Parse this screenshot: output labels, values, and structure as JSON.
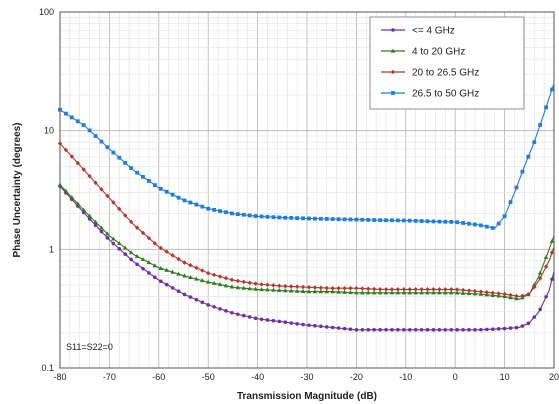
{
  "chart_data": {
    "type": "line",
    "title": "",
    "xlabel": "Transmission Magnitude  (dB)",
    "ylabel": "Phase Uncertainty  (degrees)",
    "xlim": [
      -80,
      20
    ],
    "ylim": [
      0.1,
      100
    ],
    "yscale": "log",
    "grid": true,
    "legend_position": "top-right",
    "x_ticks": [
      "-80",
      "-70",
      "-60",
      "-50",
      "-40",
      "-30",
      "-20",
      "-10",
      "0",
      "10",
      "20"
    ],
    "y_ticks": [
      "0.1",
      "1",
      "10",
      "100"
    ],
    "annotation": "S11=S22=0",
    "series": [
      {
        "name": "<= 4 GHz",
        "color": "#7030a0",
        "marker": "circle",
        "x": [
          -80,
          -75,
          -70,
          -65,
          -60,
          -55,
          -50,
          -45,
          -40,
          -35,
          -30,
          -25,
          -20,
          -15,
          -10,
          -5,
          0,
          5,
          10,
          13,
          15,
          17,
          19,
          20
        ],
        "y": [
          3.4,
          2.0,
          1.2,
          0.78,
          0.55,
          0.42,
          0.34,
          0.29,
          0.26,
          0.245,
          0.23,
          0.22,
          0.21,
          0.21,
          0.21,
          0.21,
          0.21,
          0.21,
          0.215,
          0.22,
          0.24,
          0.3,
          0.45,
          0.65
        ]
      },
      {
        "name": "4 to 20 GHz",
        "color": "#2e7d1e",
        "marker": "triangle",
        "x": [
          -80,
          -75,
          -70,
          -65,
          -60,
          -55,
          -50,
          -45,
          -40,
          -35,
          -30,
          -25,
          -20,
          -15,
          -10,
          -5,
          0,
          5,
          10,
          13,
          15,
          17,
          19,
          20
        ],
        "y": [
          3.5,
          2.1,
          1.3,
          0.9,
          0.7,
          0.6,
          0.53,
          0.48,
          0.46,
          0.45,
          0.44,
          0.44,
          0.43,
          0.43,
          0.43,
          0.43,
          0.43,
          0.42,
          0.4,
          0.38,
          0.42,
          0.6,
          1.0,
          1.3
        ]
      },
      {
        "name": "20 to 26.5 GHz",
        "color": "#b03a2e",
        "marker": "diamond",
        "x": [
          -80,
          -75,
          -70,
          -65,
          -60,
          -55,
          -50,
          -45,
          -40,
          -35,
          -30,
          -25,
          -20,
          -15,
          -10,
          -5,
          0,
          5,
          10,
          13,
          15,
          17,
          19,
          20
        ],
        "y": [
          7.8,
          4.6,
          2.7,
          1.6,
          1.05,
          0.78,
          0.63,
          0.55,
          0.51,
          0.49,
          0.48,
          0.47,
          0.47,
          0.46,
          0.46,
          0.46,
          0.46,
          0.44,
          0.42,
          0.4,
          0.42,
          0.55,
          0.8,
          1.05
        ]
      },
      {
        "name": "26.5 to 50 GHz",
        "color": "#1f7fd6",
        "marker": "square",
        "x": [
          -80,
          -75,
          -70,
          -65,
          -60,
          -55,
          -50,
          -45,
          -40,
          -35,
          -30,
          -25,
          -20,
          -15,
          -10,
          -5,
          0,
          5,
          8,
          10,
          12,
          14,
          16,
          18,
          20
        ],
        "y": [
          15,
          11,
          7,
          4.6,
          3.3,
          2.6,
          2.2,
          2.0,
          1.9,
          1.85,
          1.82,
          1.8,
          1.78,
          1.76,
          1.75,
          1.72,
          1.7,
          1.6,
          1.5,
          1.9,
          3.0,
          5.0,
          8.0,
          14,
          25
        ]
      }
    ]
  }
}
